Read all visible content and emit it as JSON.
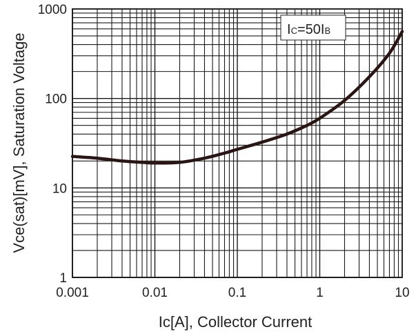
{
  "chart_data": {
    "type": "line",
    "title": "",
    "xlabel": "Ic[A], Collector Current",
    "ylabel": "Vce(sat)[mV], Saturation Voltage",
    "x_scale": "log",
    "y_scale": "log",
    "xlim": [
      0.001,
      10
    ],
    "ylim": [
      1,
      1000
    ],
    "grid": true,
    "x_ticks": [
      {
        "value": 0.001,
        "label": "0.001"
      },
      {
        "value": 0.01,
        "label": "0.01"
      },
      {
        "value": 0.1,
        "label": "0.1"
      },
      {
        "value": 1,
        "label": "1"
      },
      {
        "value": 10,
        "label": "10"
      }
    ],
    "y_ticks": [
      {
        "value": 1,
        "label": "1"
      },
      {
        "value": 10,
        "label": "10"
      },
      {
        "value": 100,
        "label": "100"
      },
      {
        "value": 1000,
        "label": "1000"
      }
    ],
    "annotation": {
      "main": "I",
      "sub1": "C",
      "mid": "=50I",
      "sub2": "B"
    },
    "series": [
      {
        "color": "#2a1414",
        "x": [
          0.001,
          0.002,
          0.004,
          0.007,
          0.01,
          0.02,
          0.04,
          0.07,
          0.1,
          0.2,
          0.4,
          0.7,
          1,
          2,
          4,
          7,
          10
        ],
        "y": [
          22.5,
          21.5,
          20.0,
          19.3,
          19.0,
          19.3,
          21.5,
          24.5,
          27.0,
          32.5,
          40.0,
          50.0,
          60.0,
          95.0,
          175.0,
          320.0,
          560.0
        ]
      }
    ]
  }
}
